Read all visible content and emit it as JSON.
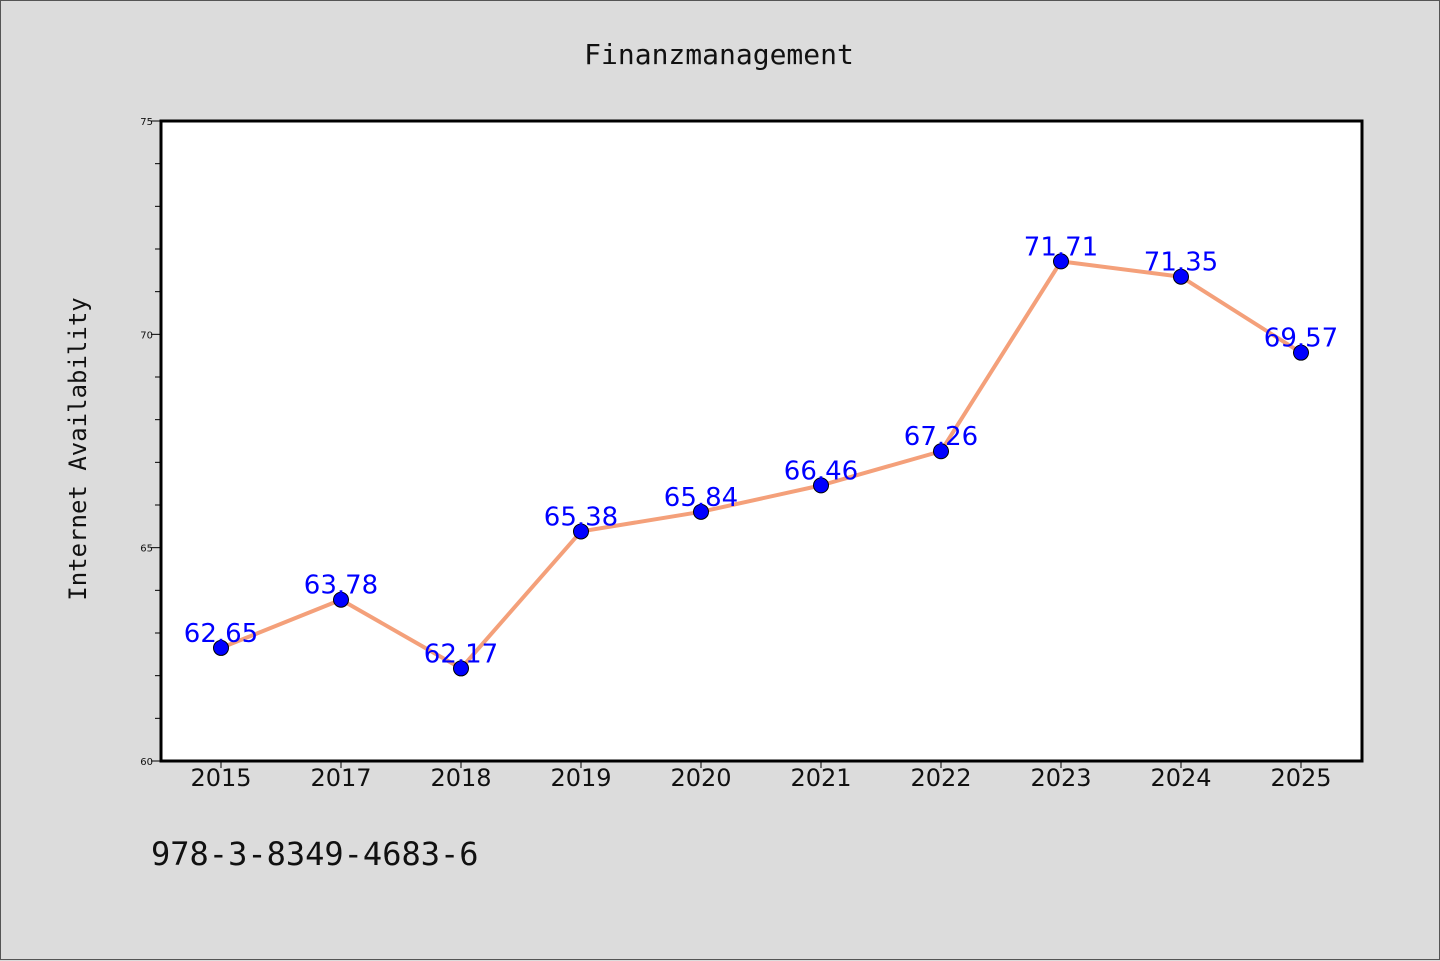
{
  "chart_data": {
    "type": "line",
    "title": "Finanzmanagement",
    "xlabel": "",
    "ylabel": "Internet Availability",
    "categories": [
      "2015",
      "2017",
      "2018",
      "2019",
      "2020",
      "2021",
      "2022",
      "2023",
      "2024",
      "2025"
    ],
    "values": [
      62.65,
      63.78,
      62.17,
      65.38,
      65.84,
      66.46,
      67.26,
      71.71,
      71.35,
      69.57
    ],
    "data_labels": [
      "62.65",
      "63.78",
      "62.17",
      "65.38",
      "65.84",
      "66.46",
      "67.26",
      "71.71",
      "71.35",
      "69.57"
    ],
    "ylim": [
      60,
      75
    ],
    "yticks": [
      "60",
      "65",
      "70",
      "75"
    ],
    "grid": false,
    "line_color": "#f4a07a",
    "marker_color": "#0000ff",
    "label_color": "#0000ff"
  },
  "footer": {
    "isbn": "978-3-8349-4683-6"
  }
}
